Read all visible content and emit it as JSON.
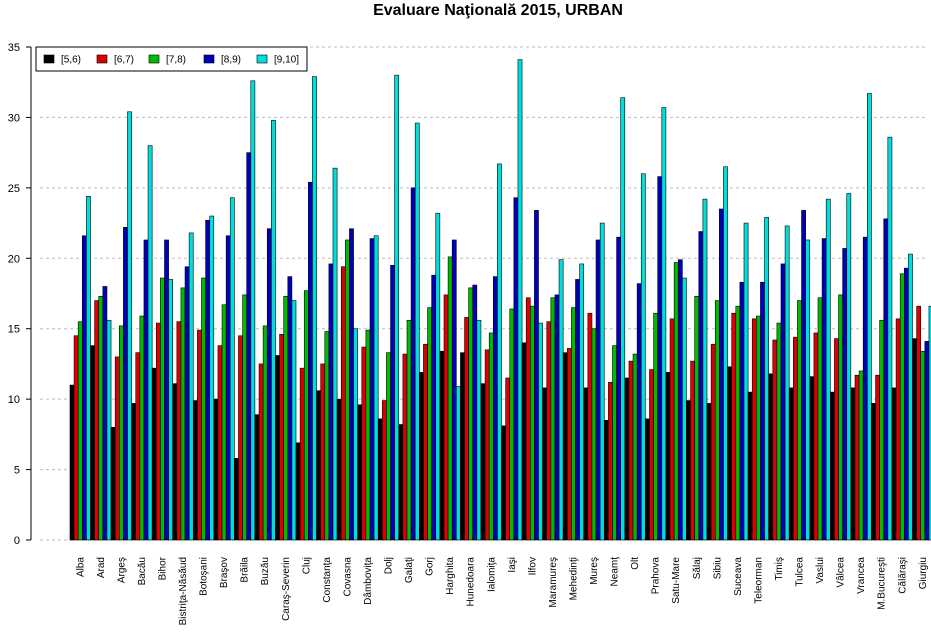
{
  "chart_data": {
    "type": "bar",
    "title": "Evaluare Naţională 2015, URBAN",
    "xlabel": "",
    "ylabel": "",
    "ylim": [
      0,
      35
    ],
    "yticks": [
      0,
      5,
      10,
      15,
      20,
      25,
      30,
      35
    ],
    "grid": true,
    "legend_position": "top-left",
    "categories": [
      "Alba",
      "Arad",
      "Argeş",
      "Bacău",
      "Bihor",
      "Bistriţa-Năsăud",
      "Botoşani",
      "Braşov",
      "Brăila",
      "Buzău",
      "Caraş-Severin",
      "Cluj",
      "Constanţa",
      "Covasna",
      "Dâmboviţa",
      "Dolj",
      "Galaţi",
      "Gorj",
      "Harghita",
      "Hunedoara",
      "Ialomiţa",
      "Iaşi",
      "Ilfov",
      "Maramureş",
      "Mehedinţi",
      "Mureş",
      "Neamţ",
      "Olt",
      "Prahova",
      "Satu-Mare",
      "Sălaj",
      "Sibiu",
      "Suceava",
      "Teleorman",
      "Timiş",
      "Tulcea",
      "Vaslui",
      "Vâlcea",
      "Vrancea",
      "M.Bucureşti",
      "Călăraşi",
      "Giurgiu"
    ],
    "series": [
      {
        "name": "[5,6)",
        "color": "#000000",
        "values": [
          11.0,
          13.8,
          8.0,
          9.7,
          12.2,
          11.1,
          9.9,
          10.0,
          5.8,
          8.9,
          13.1,
          6.9,
          10.6,
          10.0,
          9.6,
          8.6,
          8.2,
          11.9,
          13.4,
          13.3,
          11.1,
          8.1,
          14.0,
          10.8,
          13.3,
          10.8,
          8.5,
          11.5,
          8.6,
          11.9,
          9.9,
          9.7,
          12.3,
          10.5,
          11.8,
          10.8,
          11.6,
          10.5,
          10.8,
          9.7,
          10.8,
          14.3
        ]
      },
      {
        "name": "[6,7)",
        "color": "#dd0000",
        "values": [
          14.5,
          17.0,
          13.0,
          13.3,
          15.4,
          15.5,
          14.9,
          13.8,
          14.5,
          12.5,
          14.6,
          12.2,
          12.5,
          19.4,
          13.7,
          9.9,
          13.2,
          13.9,
          17.4,
          15.8,
          13.5,
          11.5,
          17.2,
          15.5,
          13.6,
          16.1,
          11.2,
          12.7,
          12.1,
          15.7,
          12.7,
          13.9,
          16.1,
          15.7,
          14.2,
          14.4,
          14.7,
          14.3,
          11.7,
          11.7,
          15.7,
          16.6
        ]
      },
      {
        "name": "[7,8)",
        "color": "#00bb00",
        "values": [
          15.5,
          17.3,
          15.2,
          15.9,
          18.6,
          17.9,
          18.6,
          16.7,
          17.4,
          15.2,
          17.3,
          17.7,
          14.8,
          21.3,
          14.9,
          13.3,
          15.6,
          16.5,
          20.1,
          17.9,
          14.7,
          16.4,
          16.6,
          17.2,
          16.5,
          15.0,
          13.8,
          13.2,
          16.1,
          19.7,
          17.3,
          17.0,
          16.6,
          15.9,
          15.4,
          17.0,
          17.2,
          17.4,
          12.0,
          15.6,
          18.9,
          13.4
        ]
      },
      {
        "name": "[8,9)",
        "color": "#0000bb",
        "values": [
          21.6,
          18.0,
          22.2,
          21.3,
          21.3,
          19.4,
          22.7,
          21.6,
          27.5,
          22.1,
          18.7,
          25.4,
          19.6,
          22.1,
          21.4,
          19.5,
          25.0,
          18.8,
          21.3,
          18.1,
          18.7,
          24.3,
          23.4,
          17.4,
          18.5,
          21.3,
          21.5,
          18.2,
          25.8,
          19.9,
          21.9,
          23.5,
          18.3,
          18.3,
          19.6,
          23.4,
          21.4,
          20.7,
          21.5,
          22.8,
          19.3,
          14.1
        ]
      },
      {
        "name": "[9,10]",
        "color": "#00dddd",
        "values": [
          24.4,
          15.6,
          30.4,
          28.0,
          18.5,
          21.8,
          23.0,
          24.3,
          32.6,
          29.8,
          17.0,
          32.9,
          26.4,
          15.0,
          21.6,
          33.0,
          29.6,
          23.2,
          10.9,
          15.6,
          26.7,
          34.1,
          15.4,
          19.9,
          19.6,
          22.5,
          31.4,
          26.0,
          30.7,
          18.6,
          24.2,
          26.5,
          22.5,
          22.9,
          22.3,
          21.3,
          24.2,
          24.6,
          31.7,
          28.6,
          20.3,
          16.6
        ]
      }
    ]
  }
}
